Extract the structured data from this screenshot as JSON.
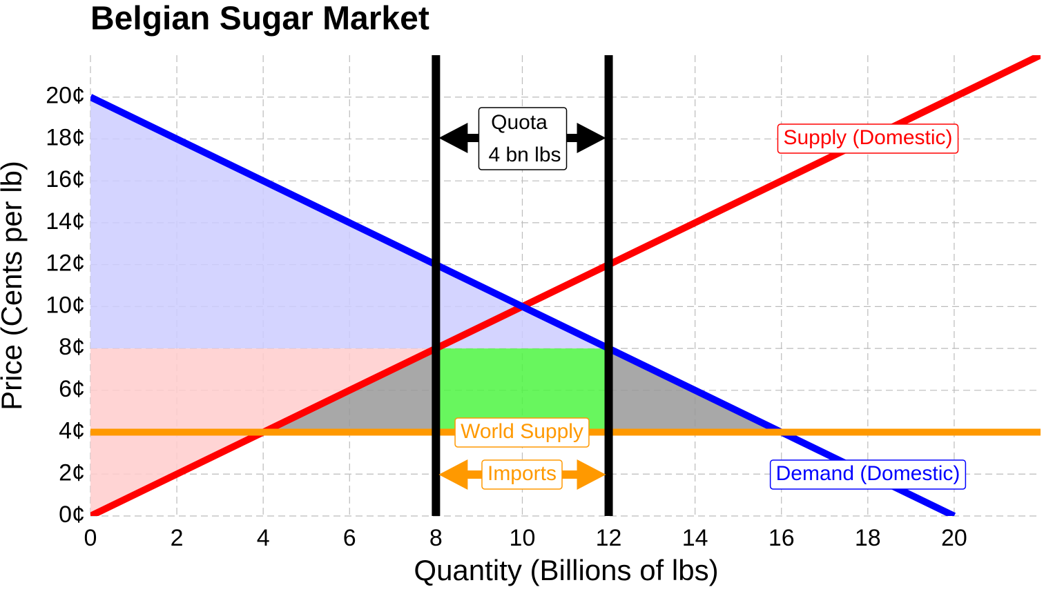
{
  "chart_data": {
    "type": "line",
    "title": "Belgian Sugar Market",
    "xlabel": "Quantity (Billions of lbs)",
    "ylabel": "Price (Cents per lb)",
    "xlim": [
      0,
      22
    ],
    "ylim": [
      0,
      22
    ],
    "xticks": [
      0,
      2,
      4,
      6,
      8,
      10,
      12,
      14,
      16,
      18,
      20
    ],
    "yticks": [
      {
        "value": 0,
        "label": "0¢"
      },
      {
        "value": 2,
        "label": "2¢"
      },
      {
        "value": 4,
        "label": "4¢"
      },
      {
        "value": 6,
        "label": "6¢"
      },
      {
        "value": 8,
        "label": "8¢"
      },
      {
        "value": 10,
        "label": "10¢"
      },
      {
        "value": 12,
        "label": "12¢"
      },
      {
        "value": 14,
        "label": "14¢"
      },
      {
        "value": 16,
        "label": "16¢"
      },
      {
        "value": 18,
        "label": "18¢"
      },
      {
        "value": 20,
        "label": "20¢"
      }
    ],
    "grid": true,
    "areas": [
      {
        "color": "#ccccff",
        "x": [
          0,
          12,
          0
        ],
        "y": [
          20,
          8,
          8
        ]
      },
      {
        "color": "#ffcccc",
        "x": [
          0,
          8,
          0
        ],
        "y": [
          0,
          8,
          8
        ]
      },
      {
        "color": "#999999",
        "x": [
          4,
          8,
          8
        ],
        "y": [
          4,
          8,
          4
        ]
      },
      {
        "color": "#999999",
        "x": [
          12,
          16,
          12
        ],
        "y": [
          8,
          4,
          4
        ]
      },
      {
        "color": "#4ef542",
        "x": [
          8,
          12,
          12,
          8
        ],
        "y": [
          4,
          4,
          8,
          8
        ]
      }
    ],
    "series": [
      {
        "name": "Supply (Domestic)",
        "color": "#ff0000",
        "x": [
          0,
          22
        ],
        "values": [
          0,
          22
        ]
      },
      {
        "name": "Demand (Domestic)",
        "color": "#0000ff",
        "x": [
          0,
          20
        ],
        "values": [
          20,
          0
        ]
      },
      {
        "name": "World Supply",
        "color": "#ff9900",
        "x": [
          0,
          22
        ],
        "values": [
          4,
          4
        ]
      }
    ],
    "quota": {
      "color": "#000000",
      "x": [
        8,
        12
      ],
      "label": [
        "Quota",
        "4 bn lbs"
      ]
    },
    "imports_label": "Imports"
  }
}
